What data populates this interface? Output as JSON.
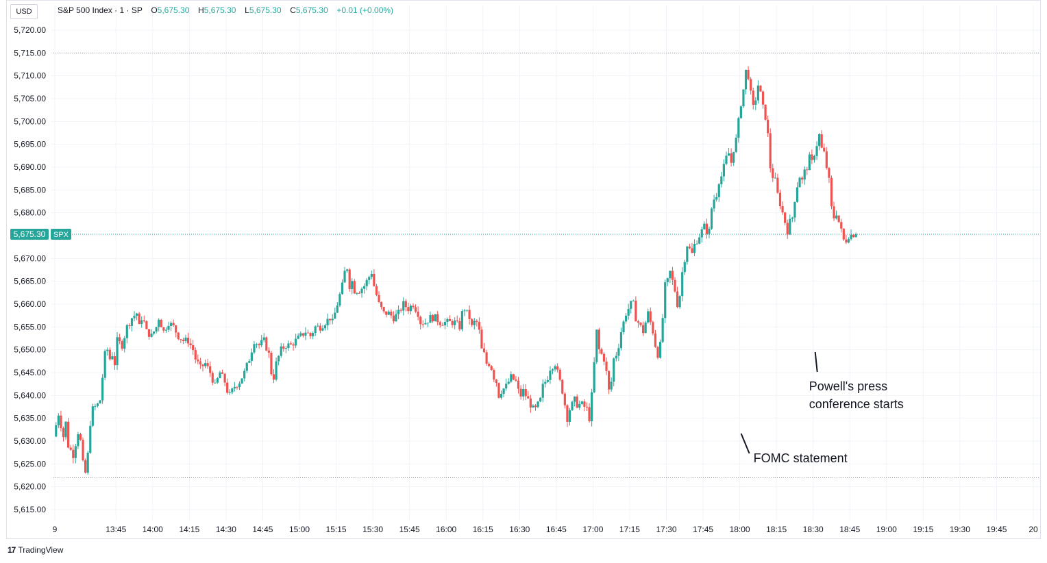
{
  "header": {
    "currency": "USD",
    "symbol_title": "S&P 500 Index · 1 · SP",
    "ohlc": [
      {
        "label": "O",
        "value": "5,675.30"
      },
      {
        "label": "H",
        "value": "5,675.30"
      },
      {
        "label": "L",
        "value": "5,675.30"
      },
      {
        "label": "C",
        "value": "5,675.30"
      }
    ],
    "change": "+0.01 (+0.00%)"
  },
  "footer": {
    "brand": "TradingView"
  },
  "colors": {
    "up": "#26a69a",
    "down": "#ef5350",
    "grid": "#f0f3fa",
    "axis_text": "#131722"
  },
  "chart_data": {
    "type": "candlestick",
    "title": "S&P 500 Index · 1 · SP",
    "interval": "1 minute",
    "ylim": [
      5611.0,
      5724.0
    ],
    "y_ticks": [
      5615,
      5620,
      5625,
      5630,
      5635,
      5640,
      5645,
      5650,
      5655,
      5660,
      5665,
      5670,
      5675,
      5680,
      5685,
      5690,
      5695,
      5700,
      5705,
      5710,
      5715,
      5720
    ],
    "y_tick_labels": [
      "5,615.00",
      "5,620.00",
      "5,625.00",
      "5,630.00",
      "5,635.00",
      "5,640.00",
      "5,645.00",
      "5,650.00",
      "5,655.00",
      "5,660.00",
      "5,665.00",
      "5,670.00",
      "5,675.00",
      "5,680.00",
      "5,685.00",
      "5,690.00",
      "5,695.00",
      "5,700.00",
      "5,705.00",
      "5,710.00",
      "5,715.00",
      "5,720.00"
    ],
    "x_ticks": [
      {
        "label": "9",
        "minute": 800
      },
      {
        "label": "13:45",
        "minute": 825
      },
      {
        "label": "14:00",
        "minute": 840
      },
      {
        "label": "14:15",
        "minute": 855
      },
      {
        "label": "14:30",
        "minute": 870
      },
      {
        "label": "14:45",
        "minute": 885
      },
      {
        "label": "15:00",
        "minute": 900
      },
      {
        "label": "15:15",
        "minute": 915
      },
      {
        "label": "15:30",
        "minute": 930
      },
      {
        "label": "15:45",
        "minute": 945
      },
      {
        "label": "16:00",
        "minute": 960
      },
      {
        "label": "16:15",
        "minute": 975
      },
      {
        "label": "16:30",
        "minute": 990
      },
      {
        "label": "16:45",
        "minute": 1005
      },
      {
        "label": "17:00",
        "minute": 1020
      },
      {
        "label": "17:15",
        "minute": 1035
      },
      {
        "label": "17:30",
        "minute": 1050
      },
      {
        "label": "17:45",
        "minute": 1065
      },
      {
        "label": "18:00",
        "minute": 1080
      },
      {
        "label": "18:15",
        "minute": 1095
      },
      {
        "label": "18:30",
        "minute": 1110
      },
      {
        "label": "18:45",
        "minute": 1125
      },
      {
        "label": "19:00",
        "minute": 1140
      },
      {
        "label": "19:15",
        "minute": 1155
      },
      {
        "label": "19:30",
        "minute": 1170
      },
      {
        "label": "19:45",
        "minute": 1185
      },
      {
        "label": "20",
        "minute": 1200
      }
    ],
    "x_range_minutes": [
      800,
      1200
    ],
    "start_time": "13:30",
    "price_path": [
      [
        0,
        5631
      ],
      [
        2,
        5636
      ],
      [
        4,
        5631
      ],
      [
        5,
        5634
      ],
      [
        6,
        5629
      ],
      [
        8,
        5627
      ],
      [
        10,
        5632
      ],
      [
        11,
        5630
      ],
      [
        12,
        5625
      ],
      [
        13,
        5623
      ],
      [
        14,
        5627
      ],
      [
        15,
        5634
      ],
      [
        16,
        5637
      ],
      [
        18,
        5638
      ],
      [
        19,
        5639
      ],
      [
        20,
        5644
      ],
      [
        21,
        5649
      ],
      [
        22,
        5650
      ],
      [
        23,
        5648
      ],
      [
        24,
        5649
      ],
      [
        25,
        5647
      ],
      [
        26,
        5652
      ],
      [
        28,
        5651
      ],
      [
        30,
        5655
      ],
      [
        32,
        5657
      ],
      [
        34,
        5658
      ],
      [
        35,
        5655
      ],
      [
        36,
        5657
      ],
      [
        37,
        5656
      ],
      [
        38,
        5654
      ],
      [
        40,
        5653
      ],
      [
        42,
        5655
      ],
      [
        43,
        5657
      ],
      [
        45,
        5654
      ],
      [
        47,
        5656
      ],
      [
        49,
        5655
      ],
      [
        51,
        5653
      ],
      [
        53,
        5652
      ],
      [
        55,
        5652
      ],
      [
        57,
        5650
      ],
      [
        58,
        5648
      ],
      [
        60,
        5646
      ],
      [
        62,
        5647
      ],
      [
        64,
        5645
      ],
      [
        66,
        5642
      ],
      [
        68,
        5645
      ],
      [
        69,
        5644
      ],
      [
        70,
        5643
      ],
      [
        71,
        5641
      ],
      [
        72,
        5640
      ],
      [
        74,
        5642
      ],
      [
        76,
        5643
      ],
      [
        78,
        5645
      ],
      [
        80,
        5648
      ],
      [
        82,
        5652
      ],
      [
        84,
        5651
      ],
      [
        86,
        5652
      ],
      [
        88,
        5649
      ],
      [
        89,
        5645
      ],
      [
        90,
        5644
      ],
      [
        91,
        5647
      ],
      [
        93,
        5650
      ],
      [
        95,
        5651
      ],
      [
        97,
        5651
      ],
      [
        99,
        5652
      ],
      [
        101,
        5653
      ],
      [
        103,
        5654
      ],
      [
        105,
        5653
      ],
      [
        107,
        5655
      ],
      [
        109,
        5655
      ],
      [
        111,
        5656
      ],
      [
        113,
        5657
      ],
      [
        114,
        5656
      ],
      [
        116,
        5660
      ],
      [
        118,
        5664
      ],
      [
        119,
        5667
      ],
      [
        120,
        5668
      ],
      [
        121,
        5664
      ],
      [
        122,
        5665
      ],
      [
        123,
        5663
      ],
      [
        125,
        5663
      ],
      [
        127,
        5664
      ],
      [
        129,
        5666
      ],
      [
        130,
        5667
      ],
      [
        131,
        5664
      ],
      [
        132,
        5662
      ],
      [
        133,
        5660
      ],
      [
        135,
        5658
      ],
      [
        137,
        5658
      ],
      [
        139,
        5657
      ],
      [
        141,
        5658
      ],
      [
        143,
        5660
      ],
      [
        145,
        5659
      ],
      [
        147,
        5660
      ],
      [
        149,
        5658
      ],
      [
        150,
        5656
      ],
      [
        152,
        5656
      ],
      [
        154,
        5657
      ],
      [
        156,
        5657
      ],
      [
        158,
        5656
      ],
      [
        160,
        5656
      ],
      [
        162,
        5656
      ],
      [
        164,
        5656
      ],
      [
        166,
        5655
      ],
      [
        167,
        5658
      ],
      [
        168,
        5659
      ],
      [
        170,
        5657
      ],
      [
        171,
        5655
      ],
      [
        172,
        5656
      ],
      [
        173,
        5656
      ],
      [
        174,
        5654
      ],
      [
        175,
        5650
      ],
      [
        176,
        5649
      ],
      [
        177,
        5647
      ],
      [
        178,
        5647
      ],
      [
        179,
        5646
      ],
      [
        180,
        5644
      ],
      [
        181,
        5643
      ],
      [
        182,
        5640
      ],
      [
        183,
        5641
      ],
      [
        185,
        5642
      ],
      [
        187,
        5644
      ],
      [
        189,
        5643
      ],
      [
        190,
        5641
      ],
      [
        191,
        5640
      ],
      [
        192,
        5641
      ],
      [
        193,
        5640
      ],
      [
        194,
        5639
      ],
      [
        196,
        5637
      ],
      [
        197,
        5637
      ],
      [
        199,
        5639
      ],
      [
        200,
        5642
      ],
      [
        202,
        5644
      ],
      [
        203,
        5646
      ],
      [
        205,
        5647
      ],
      [
        206,
        5645
      ],
      [
        207,
        5643
      ],
      [
        208,
        5641
      ],
      [
        209,
        5638
      ],
      [
        210,
        5635
      ],
      [
        211,
        5637
      ],
      [
        213,
        5639
      ],
      [
        214,
        5638
      ],
      [
        216,
        5638
      ],
      [
        218,
        5637
      ],
      [
        219,
        5635
      ],
      [
        220,
        5640
      ],
      [
        221,
        5647
      ],
      [
        222,
        5654
      ],
      [
        223,
        5650
      ],
      [
        224,
        5649
      ],
      [
        225,
        5648
      ],
      [
        226,
        5645
      ],
      [
        227,
        5641
      ],
      [
        228,
        5643
      ],
      [
        229,
        5648
      ],
      [
        230,
        5649
      ],
      [
        231,
        5651
      ],
      [
        232,
        5654
      ],
      [
        233,
        5656
      ],
      [
        234,
        5658
      ],
      [
        235,
        5659
      ],
      [
        236,
        5660
      ],
      [
        237,
        5660
      ],
      [
        238,
        5657
      ],
      [
        239,
        5656
      ],
      [
        240,
        5655
      ],
      [
        241,
        5654
      ],
      [
        242,
        5656
      ],
      [
        243,
        5658
      ],
      [
        244,
        5656
      ],
      [
        245,
        5654
      ],
      [
        246,
        5651
      ],
      [
        247,
        5649
      ],
      [
        248,
        5651
      ],
      [
        249,
        5657
      ],
      [
        250,
        5664
      ],
      [
        251,
        5665
      ],
      [
        252,
        5667
      ],
      [
        253,
        5665
      ],
      [
        254,
        5663
      ],
      [
        255,
        5660
      ],
      [
        256,
        5662
      ],
      [
        257,
        5667
      ],
      [
        258,
        5670
      ],
      [
        259,
        5673
      ],
      [
        260,
        5672
      ],
      [
        261,
        5671
      ],
      [
        262,
        5673
      ],
      [
        263,
        5674
      ],
      [
        264,
        5675
      ],
      [
        265,
        5676
      ],
      [
        266,
        5677
      ],
      [
        267,
        5676
      ],
      [
        268,
        5676
      ],
      [
        269,
        5681
      ],
      [
        270,
        5683
      ],
      [
        271,
        5684
      ],
      [
        272,
        5687
      ],
      [
        273,
        5688
      ],
      [
        274,
        5690
      ],
      [
        275,
        5692
      ],
      [
        276,
        5693
      ],
      [
        277,
        5691
      ],
      [
        278,
        5694
      ],
      [
        279,
        5696
      ],
      [
        280,
        5700
      ],
      [
        281,
        5704
      ],
      [
        282,
        5707
      ],
      [
        283,
        5711
      ],
      [
        284,
        5710
      ],
      [
        285,
        5706
      ],
      [
        286,
        5703
      ],
      [
        287,
        5705
      ],
      [
        288,
        5708
      ],
      [
        289,
        5706
      ],
      [
        290,
        5703
      ],
      [
        291,
        5701
      ],
      [
        292,
        5697
      ],
      [
        293,
        5690
      ],
      [
        294,
        5688
      ],
      [
        295,
        5687
      ],
      [
        296,
        5684
      ],
      [
        297,
        5682
      ],
      [
        298,
        5680
      ],
      [
        299,
        5678
      ],
      [
        300,
        5676
      ],
      [
        301,
        5678
      ],
      [
        302,
        5679
      ],
      [
        303,
        5683
      ],
      [
        304,
        5686
      ],
      [
        305,
        5688
      ],
      [
        306,
        5687
      ],
      [
        307,
        5689
      ],
      [
        308,
        5690
      ],
      [
        309,
        5692
      ],
      [
        310,
        5691
      ],
      [
        311,
        5693
      ],
      [
        312,
        5695
      ],
      [
        313,
        5697
      ],
      [
        314,
        5694
      ],
      [
        315,
        5693
      ],
      [
        316,
        5690
      ],
      [
        317,
        5687
      ],
      [
        318,
        5681
      ],
      [
        319,
        5679
      ],
      [
        320,
        5680
      ],
      [
        321,
        5678
      ],
      [
        322,
        5676
      ],
      [
        323,
        5674
      ],
      [
        324,
        5674
      ],
      [
        325,
        5675
      ],
      [
        327,
        5675.3
      ]
    ],
    "reference_lines": [
      {
        "value": 5715.0,
        "kind": "session-high"
      },
      {
        "value": 5622.0,
        "kind": "session-low"
      },
      {
        "value": 5675.3,
        "kind": "last-price"
      }
    ],
    "last_price": {
      "label": "5,675.30",
      "tag": "SPX",
      "value": 5675.3
    },
    "annotations": [
      {
        "text": "FOMC statement",
        "minute": 1080
      },
      {
        "text_lines": [
          "Powell's press",
          "conference starts"
        ],
        "minute": 1110
      }
    ]
  }
}
